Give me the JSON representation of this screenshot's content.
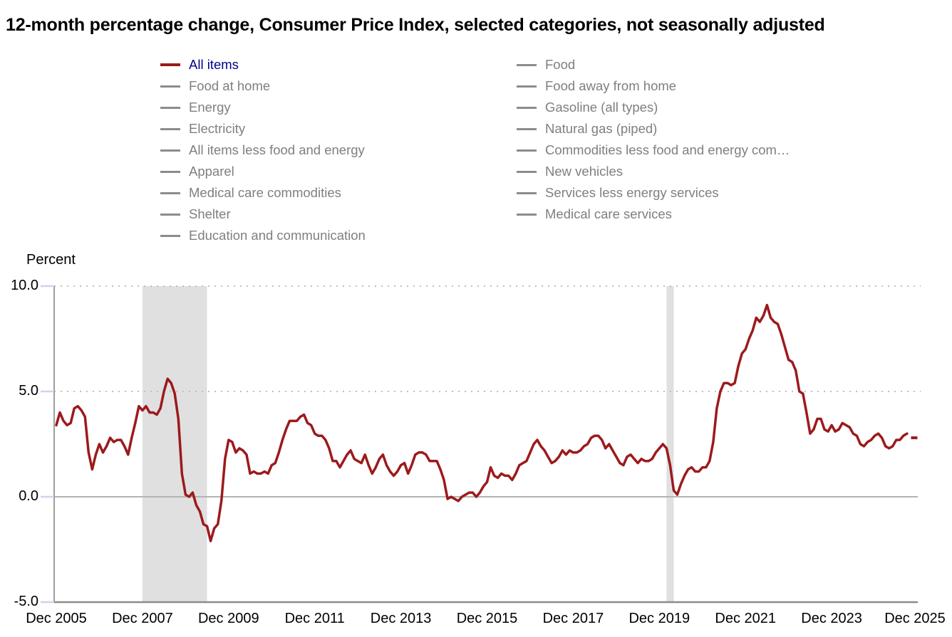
{
  "title": "12-month percentage change, Consumer Price Index, selected categories, not seasonally adjusted",
  "colors": {
    "line": "#9c1a1c",
    "active_label": "#00008b",
    "inactive_swatch": "#8c8c8c",
    "inactive_label": "#7f7f7f",
    "recession_band": "#e0e0e0",
    "dotted_grid": "#bfbfbf",
    "zero_line": "#b3b3b3",
    "baseline": "#8c8c8c",
    "spine": "#7f7f7f",
    "tick_mark": "#c9d6ea",
    "label_text": "#000000"
  },
  "legend": {
    "columns": [
      {
        "items": [
          {
            "label": "All items",
            "active": true
          },
          {
            "label": "Food at home",
            "active": false
          },
          {
            "label": "Energy",
            "active": false
          },
          {
            "label": "Electricity",
            "active": false
          },
          {
            "label": "All items less food and energy",
            "active": false
          },
          {
            "label": "Apparel",
            "active": false
          },
          {
            "label": "Medical care commodities",
            "active": false
          },
          {
            "label": "Shelter",
            "active": false
          },
          {
            "label": "Education and communication",
            "active": false
          }
        ]
      },
      {
        "items": [
          {
            "label": "Food",
            "active": false
          },
          {
            "label": "Food away from home",
            "active": false
          },
          {
            "label": "Gasoline (all types)",
            "active": false
          },
          {
            "label": "Natural gas (piped)",
            "active": false
          },
          {
            "label": "Commodities less food and energy com…",
            "active": false
          },
          {
            "label": "New vehicles",
            "active": false
          },
          {
            "label": "Services less energy services",
            "active": false
          },
          {
            "label": "Medical care services",
            "active": false
          }
        ]
      }
    ]
  },
  "y_axis": {
    "label": "Percent",
    "tick_labels": [
      "10.0",
      "5.0",
      "0.0",
      "-5.0"
    ],
    "tick_values": [
      10,
      5,
      0,
      -5
    ]
  },
  "x_axis": {
    "tick_labels": [
      "Dec 2005",
      "Dec 2007",
      "Dec 2009",
      "Dec 2011",
      "Dec 2013",
      "Dec 2015",
      "Dec 2017",
      "Dec 2019",
      "Dec 2021",
      "Dec 2023",
      "Dec 2025"
    ],
    "tick_month_indices": [
      0,
      24,
      48,
      72,
      96,
      120,
      144,
      168,
      192,
      216,
      240
    ]
  },
  "chart_data": {
    "type": "line",
    "title": "12-month percentage change, Consumer Price Index, selected categories, not seasonally adjusted",
    "ylabel": "Percent",
    "ylim": [
      -5,
      10
    ],
    "x_start": "Dec 2005",
    "x_end": "Dec 2025",
    "frequency": "monthly",
    "total_months": 240,
    "grid": "dotted horizontal at 5.0 and 10.0, solid at 0.0",
    "legend_position": "top",
    "recession_bands": [
      {
        "label": "2007-2009 recession",
        "start_month_index": 24,
        "end_month_index": 42
      },
      {
        "label": "2020 recession",
        "start_month_index": 170,
        "end_month_index": 172
      }
    ],
    "series": [
      {
        "name": "All items",
        "values": [
          3.4,
          4.0,
          3.6,
          3.4,
          3.5,
          4.2,
          4.3,
          4.1,
          3.8,
          2.1,
          1.3,
          2.0,
          2.5,
          2.1,
          2.4,
          2.8,
          2.6,
          2.7,
          2.7,
          2.4,
          2.0,
          2.8,
          3.5,
          4.3,
          4.1,
          4.3,
          4.0,
          4.0,
          3.9,
          4.2,
          5.0,
          5.6,
          5.4,
          4.9,
          3.7,
          1.1,
          0.1,
          0.0,
          0.2,
          -0.4,
          -0.7,
          -1.3,
          -1.4,
          -2.1,
          -1.5,
          -1.3,
          -0.2,
          1.8,
          2.7,
          2.6,
          2.1,
          2.3,
          2.2,
          2.0,
          1.1,
          1.2,
          1.1,
          1.1,
          1.2,
          1.1,
          1.5,
          1.6,
          2.1,
          2.7,
          3.2,
          3.6,
          3.6,
          3.6,
          3.8,
          3.9,
          3.5,
          3.4,
          3.0,
          2.9,
          2.9,
          2.7,
          2.3,
          1.7,
          1.7,
          1.4,
          1.7,
          2.0,
          2.2,
          1.8,
          1.7,
          1.6,
          2.0,
          1.5,
          1.1,
          1.4,
          1.8,
          2.0,
          1.5,
          1.2,
          1.0,
          1.2,
          1.5,
          1.6,
          1.1,
          1.5,
          2.0,
          2.1,
          2.1,
          2.0,
          1.7,
          1.7,
          1.7,
          1.3,
          0.8,
          -0.1,
          0.0,
          -0.1,
          -0.2,
          0.0,
          0.1,
          0.2,
          0.2,
          0.0,
          0.2,
          0.5,
          0.7,
          1.4,
          1.0,
          0.9,
          1.1,
          1.0,
          1.0,
          0.8,
          1.1,
          1.5,
          1.6,
          1.7,
          2.1,
          2.5,
          2.7,
          2.4,
          2.2,
          1.9,
          1.6,
          1.7,
          1.9,
          2.2,
          2.0,
          2.2,
          2.1,
          2.1,
          2.2,
          2.4,
          2.5,
          2.8,
          2.9,
          2.9,
          2.7,
          2.3,
          2.5,
          2.2,
          1.9,
          1.6,
          1.5,
          1.9,
          2.0,
          1.8,
          1.6,
          1.8,
          1.7,
          1.7,
          1.8,
          2.1,
          2.3,
          2.5,
          2.3,
          1.5,
          0.3,
          0.1,
          0.6,
          1.0,
          1.3,
          1.4,
          1.2,
          1.2,
          1.4,
          1.4,
          1.7,
          2.6,
          4.2,
          5.0,
          5.4,
          5.4,
          5.3,
          5.4,
          6.2,
          6.8,
          7.0,
          7.5,
          7.9,
          8.5,
          8.3,
          8.6,
          9.1,
          8.5,
          8.3,
          8.2,
          7.7,
          7.1,
          6.5,
          6.4,
          6.0,
          5.0,
          4.9,
          4.0,
          3.0,
          3.2,
          3.7,
          3.7,
          3.2,
          3.1,
          3.4,
          3.1,
          3.2,
          3.5,
          3.4,
          3.3,
          3.0,
          2.9,
          2.5,
          2.4,
          2.6,
          2.7,
          2.9,
          3.0,
          2.8,
          2.4,
          2.3,
          2.4,
          2.7,
          2.7,
          2.9,
          3.0,
          null,
          2.8
        ]
      }
    ]
  }
}
